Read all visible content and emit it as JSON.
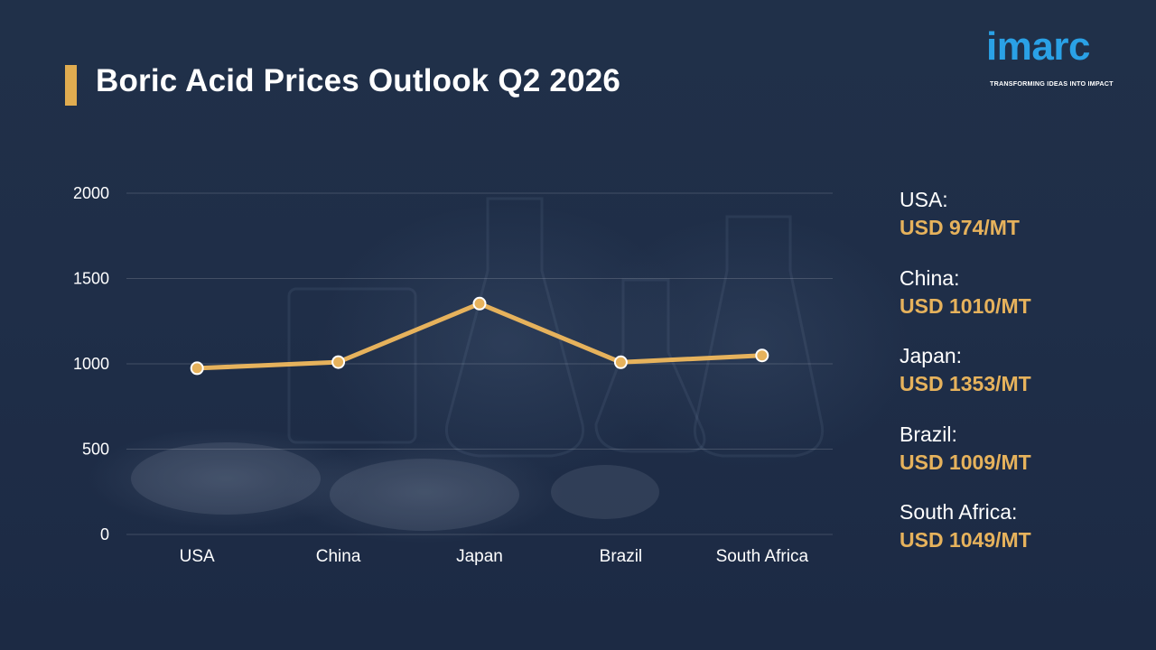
{
  "page": {
    "title": "Boric Acid Prices Outlook Q2 2026",
    "accent_color": "#e0ac50"
  },
  "logo": {
    "word": "imarc",
    "tagline": "TRANSFORMING IDEAS INTO IMPACT",
    "color": "#2aa1e6"
  },
  "chart_data": {
    "type": "line",
    "title": "Boric Acid Prices Outlook Q2 2026",
    "categories": [
      "USA",
      "China",
      "Japan",
      "Brazil",
      "South Africa"
    ],
    "series": [
      {
        "values": [
          974,
          1010,
          1353,
          1009,
          1049
        ],
        "color": "#e6b25c"
      }
    ],
    "y_ticks": [
      "0",
      "500",
      "1000",
      "1500",
      "2000"
    ],
    "ylim": [
      0,
      2000
    ],
    "xlabel": "",
    "ylabel": "",
    "grid": true,
    "legend": "none"
  },
  "price_list": [
    {
      "country": "USA:",
      "value": "USD 974/MT"
    },
    {
      "country": "China:",
      "value": "USD 1010/MT"
    },
    {
      "country": "Japan:",
      "value": "USD 1353/MT"
    },
    {
      "country": "Brazil:",
      "value": "USD 1009/MT"
    },
    {
      "country": "South Africa:",
      "value": "USD 1049/MT"
    }
  ]
}
